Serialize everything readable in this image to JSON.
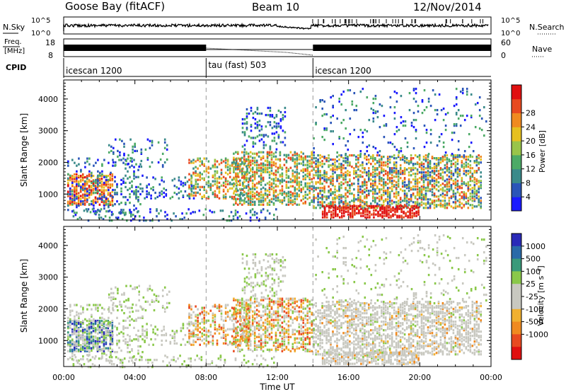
{
  "header": {
    "site": "Goose Bay (fitACF)",
    "beam": "Beam 10",
    "date": "12/Nov/2014"
  },
  "top_strips": {
    "nsky": {
      "label": "N.Sky",
      "ticks": [
        "10^5",
        "10^0"
      ]
    },
    "nsearch": {
      "label": "N.Search",
      "ticks": [
        "10^5",
        "10^0"
      ]
    },
    "freq": {
      "label_line1": "Freq.",
      "label_line2": "[MHz]",
      "ticks": [
        "18",
        "8"
      ]
    },
    "nave": {
      "label": "Nave",
      "ticks": [
        "60",
        "0"
      ]
    },
    "cpid": {
      "label": "CPID",
      "segments": [
        {
          "name": "icescan 1200",
          "start_hour": 0
        },
        {
          "name": "tau (fast) 503",
          "start_hour": 8
        },
        {
          "name": "icescan 1200",
          "start_hour": 14
        }
      ]
    }
  },
  "chart_data": [
    {
      "type": "heatmap",
      "name": "power",
      "ylabel": "Slant Range [km]",
      "ylim": [
        180,
        4600
      ],
      "xlim": [
        0,
        24
      ],
      "yticks": [
        "1000",
        "2000",
        "3000",
        "4000"
      ],
      "xticks": [
        "00:00",
        "04:00",
        "08:00",
        "12:00",
        "16:00",
        "20:00",
        "00:00"
      ],
      "colorbar": {
        "label": "Power [dB]",
        "ticks": [
          "4",
          "8",
          "12",
          "16",
          "20",
          "24",
          "28"
        ],
        "colors": [
          "#1a1aff",
          "#2a55b8",
          "#3a8a8a",
          "#4caa66",
          "#99c44a",
          "#e6c020",
          "#f08a20",
          "#e84a20",
          "#e01010"
        ]
      }
    },
    {
      "type": "heatmap",
      "name": "velocity",
      "ylabel": "Slant Range [km]",
      "xlabel": "Time UT",
      "ylim": [
        180,
        4600
      ],
      "xlim": [
        0,
        24
      ],
      "yticks": [
        "1000",
        "2000",
        "3000",
        "4000"
      ],
      "xticks": [
        "00:00",
        "04:00",
        "08:00",
        "12:00",
        "16:00",
        "20:00",
        "00:00"
      ],
      "colorbar": {
        "label": "Velocity [m s⁻¹]",
        "ticks": [
          "1000",
          "500",
          "100",
          "25",
          "-25",
          "-100",
          "-500",
          "-1000"
        ],
        "colors": [
          "#2a2ab8",
          "#2a6aa8",
          "#3a9a7a",
          "#8ac84a",
          "#c8c8c0",
          "#c8c8c0",
          "#f0b030",
          "#f08a20",
          "#e84a20",
          "#e01010"
        ]
      }
    }
  ]
}
